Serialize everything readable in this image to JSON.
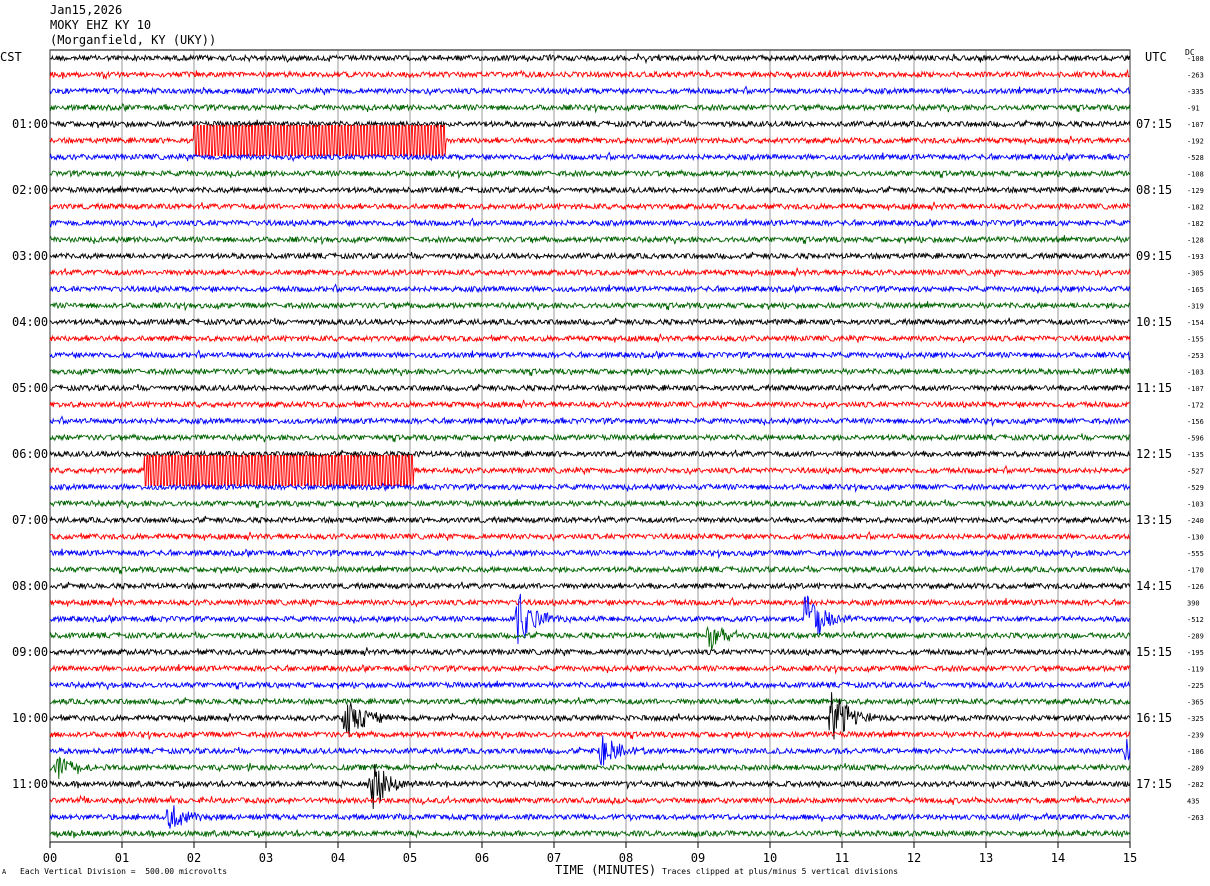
{
  "header": {
    "date": "Jan15,2026",
    "station": "MOKY EHZ KY 10",
    "location": "(Morganfield, KY (UKY))"
  },
  "corner_labels": {
    "left": "CST",
    "right": "UTC",
    "dc": "DC"
  },
  "footer": {
    "scale_note": "Each Vertical Division =  500.00 microvolts",
    "xlabel": "TIME (MINUTES)",
    "clip_note": "Traces clipped at plus/minus 5 vertical divisions",
    "corner_mark": "A"
  },
  "chart_data": {
    "type": "line",
    "title": "",
    "xlabel": "TIME (MINUTES)",
    "ylabel": "",
    "xlim": [
      0,
      15
    ],
    "x_ticks": [
      "00",
      "01",
      "02",
      "03",
      "04",
      "05",
      "06",
      "07",
      "08",
      "09",
      "10",
      "11",
      "12",
      "13",
      "14",
      "15"
    ],
    "trace_colors": [
      "#000000",
      "#ff0000",
      "#0000ff",
      "#006400"
    ],
    "grid": "vertical lines every minute",
    "rows": 48,
    "left_time_labels": [
      {
        "row": 4,
        "label": "01:00"
      },
      {
        "row": 8,
        "label": "02:00"
      },
      {
        "row": 12,
        "label": "03:00"
      },
      {
        "row": 16,
        "label": "04:00"
      },
      {
        "row": 20,
        "label": "05:00"
      },
      {
        "row": 24,
        "label": "06:00"
      },
      {
        "row": 28,
        "label": "07:00"
      },
      {
        "row": 32,
        "label": "08:00"
      },
      {
        "row": 36,
        "label": "09:00"
      },
      {
        "row": 40,
        "label": "10:00"
      },
      {
        "row": 44,
        "label": "11:00"
      }
    ],
    "right_time_labels": [
      {
        "row": 4,
        "label": "07:15"
      },
      {
        "row": 8,
        "label": "08:15"
      },
      {
        "row": 12,
        "label": "09:15"
      },
      {
        "row": 16,
        "label": "10:15"
      },
      {
        "row": 20,
        "label": "11:15"
      },
      {
        "row": 24,
        "label": "12:15"
      },
      {
        "row": 28,
        "label": "13:15"
      },
      {
        "row": 32,
        "label": "14:15"
      },
      {
        "row": 36,
        "label": "15:15"
      },
      {
        "row": 40,
        "label": "16:15"
      },
      {
        "row": 44,
        "label": "17:15"
      }
    ],
    "dc_offsets": [
      "-108",
      "-263",
      "-335",
      "-91",
      "-107",
      "-192",
      "-528",
      "-108",
      "-129",
      "-182",
      "-182",
      "-128",
      "-193",
      "-305",
      "-165",
      "-319",
      "-154",
      "-155",
      "-253",
      "-103",
      "-107",
      "-172",
      "-156",
      "-596",
      "-135",
      "-527",
      "-529",
      "-103",
      "-240",
      "-130",
      "-555",
      "-170",
      "-126",
      "390",
      "-512",
      "-289",
      "-195",
      "-119",
      "-225",
      "-365",
      "-325",
      "-239",
      "-106",
      "-289",
      "-282",
      "435",
      "-263"
    ],
    "events": [
      {
        "row": 5,
        "start_min": 2.0,
        "end_min": 5.5,
        "kind": "clipped"
      },
      {
        "row": 25,
        "start_min": 1.3,
        "end_min": 5.05,
        "kind": "clipped"
      },
      {
        "row": 34,
        "start_min": 6.45,
        "amplitude": 38,
        "kind": "burst"
      },
      {
        "row": 34,
        "start_min": 10.45,
        "amplitude": 45,
        "kind": "burst"
      },
      {
        "row": 35,
        "start_min": 9.1,
        "amplitude": 22,
        "kind": "burst"
      },
      {
        "row": 40,
        "start_min": 4.05,
        "amplitude": 30,
        "kind": "burst"
      },
      {
        "row": 40,
        "start_min": 10.8,
        "amplitude": 40,
        "kind": "burst"
      },
      {
        "row": 42,
        "start_min": 7.6,
        "amplitude": 22,
        "kind": "burst"
      },
      {
        "row": 42,
        "start_min": 14.9,
        "amplitude": 20,
        "kind": "burst"
      },
      {
        "row": 43,
        "start_min": 0.05,
        "amplitude": 20,
        "kind": "burst"
      },
      {
        "row": 44,
        "start_min": 4.4,
        "amplitude": 38,
        "kind": "burst"
      },
      {
        "row": 46,
        "start_min": 1.6,
        "amplitude": 22,
        "kind": "burst"
      }
    ]
  }
}
